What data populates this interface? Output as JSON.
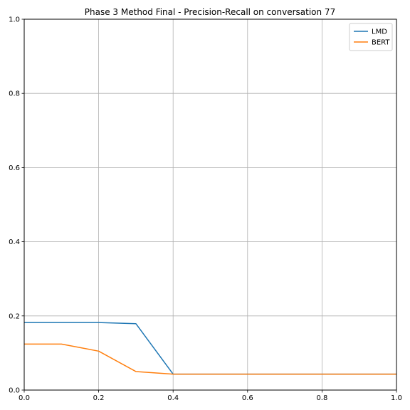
{
  "chart_data": {
    "type": "line",
    "title": "Phase 3 Method Final - Precision-Recall on conversation 77",
    "xlabel": "",
    "ylabel": "",
    "xlim": [
      0,
      1
    ],
    "ylim": [
      0,
      1
    ],
    "grid": true,
    "legend_position": "top-right",
    "xticks": [
      "0.0",
      "0.2",
      "0.4",
      "0.6",
      "0.8",
      "1.0"
    ],
    "yticks": [
      "0.0",
      "0.2",
      "0.4",
      "0.6",
      "0.8",
      "1.0"
    ],
    "x": [
      0.0,
      0.1,
      0.2,
      0.3,
      0.4,
      0.5,
      0.6,
      0.7,
      0.8,
      0.9,
      1.0
    ],
    "series": [
      {
        "name": "LMD",
        "color": "#1f77b4",
        "values": [
          0.182,
          0.182,
          0.182,
          0.179,
          0.043,
          0.043,
          0.043,
          0.043,
          0.043,
          0.043,
          0.043
        ]
      },
      {
        "name": "BERT",
        "color": "#ff7f0e",
        "values": [
          0.124,
          0.124,
          0.105,
          0.05,
          0.043,
          0.043,
          0.043,
          0.043,
          0.043,
          0.043,
          0.043
        ]
      }
    ]
  }
}
